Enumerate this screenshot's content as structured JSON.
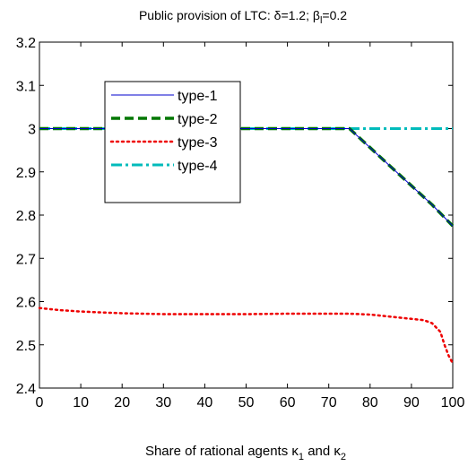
{
  "chart_data": {
    "type": "line",
    "title": {
      "prefix": "Public provision of LTC: ",
      "delta_symbol": "δ",
      "delta_value": "=1.2; ",
      "beta_symbol": "β",
      "beta_subscript": "l",
      "beta_value": "=0.2"
    },
    "xlabel": {
      "text": "Share of rational agents  ",
      "kappa1_symbol": "κ",
      "kappa1_subscript": "1",
      "connector": " and ",
      "kappa2_symbol": "κ",
      "kappa2_subscript": "2"
    },
    "ylabel": "",
    "xlim": [
      0,
      100
    ],
    "ylim": [
      2.4,
      3.2
    ],
    "x_ticks": [
      "0",
      "10",
      "20",
      "30",
      "40",
      "50",
      "60",
      "70",
      "80",
      "90",
      "100"
    ],
    "y_ticks": [
      "2.4",
      "2.5",
      "2.6",
      "2.7",
      "2.8",
      "2.9",
      "3",
      "3.1",
      "3.2"
    ],
    "grid": false,
    "legend_position": "top-left",
    "series": [
      {
        "name": "type-1",
        "color": "#0000cc",
        "style": "solid",
        "x": [
          0,
          10,
          20,
          30,
          40,
          50,
          60,
          70,
          75,
          80,
          85,
          90,
          95,
          100
        ],
        "y": [
          3.0,
          3.0,
          3.0,
          3.0,
          3.0,
          3.0,
          3.0,
          3.0,
          3.0,
          2.956,
          2.912,
          2.868,
          2.824,
          2.775
        ]
      },
      {
        "name": "type-2",
        "color": "#007700",
        "style": "dashed",
        "x": [
          0,
          10,
          20,
          30,
          40,
          50,
          60,
          70,
          75,
          80,
          85,
          90,
          95,
          100
        ],
        "y": [
          3.0,
          3.0,
          3.0,
          3.0,
          3.0,
          3.0,
          3.0,
          3.0,
          3.0,
          2.956,
          2.912,
          2.868,
          2.824,
          2.775
        ]
      },
      {
        "name": "type-3",
        "color": "#ee0000",
        "style": "dotted",
        "x": [
          0,
          5,
          10,
          15,
          20,
          25,
          30,
          40,
          50,
          60,
          70,
          75,
          80,
          85,
          90,
          93,
          95,
          97,
          98,
          99,
          100
        ],
        "y": [
          2.585,
          2.58,
          2.577,
          2.575,
          2.573,
          2.572,
          2.571,
          2.571,
          2.571,
          2.572,
          2.572,
          2.572,
          2.57,
          2.565,
          2.56,
          2.557,
          2.55,
          2.53,
          2.5,
          2.475,
          2.457
        ]
      },
      {
        "name": "type-4",
        "color": "#00bbbb",
        "style": "dashdot",
        "x": [
          0,
          10,
          20,
          30,
          40,
          50,
          60,
          70,
          80,
          90,
          100
        ],
        "y": [
          3.0,
          3.0,
          3.0,
          3.0,
          3.0,
          3.0,
          3.0,
          3.0,
          3.0,
          3.0,
          3.0
        ]
      }
    ]
  }
}
